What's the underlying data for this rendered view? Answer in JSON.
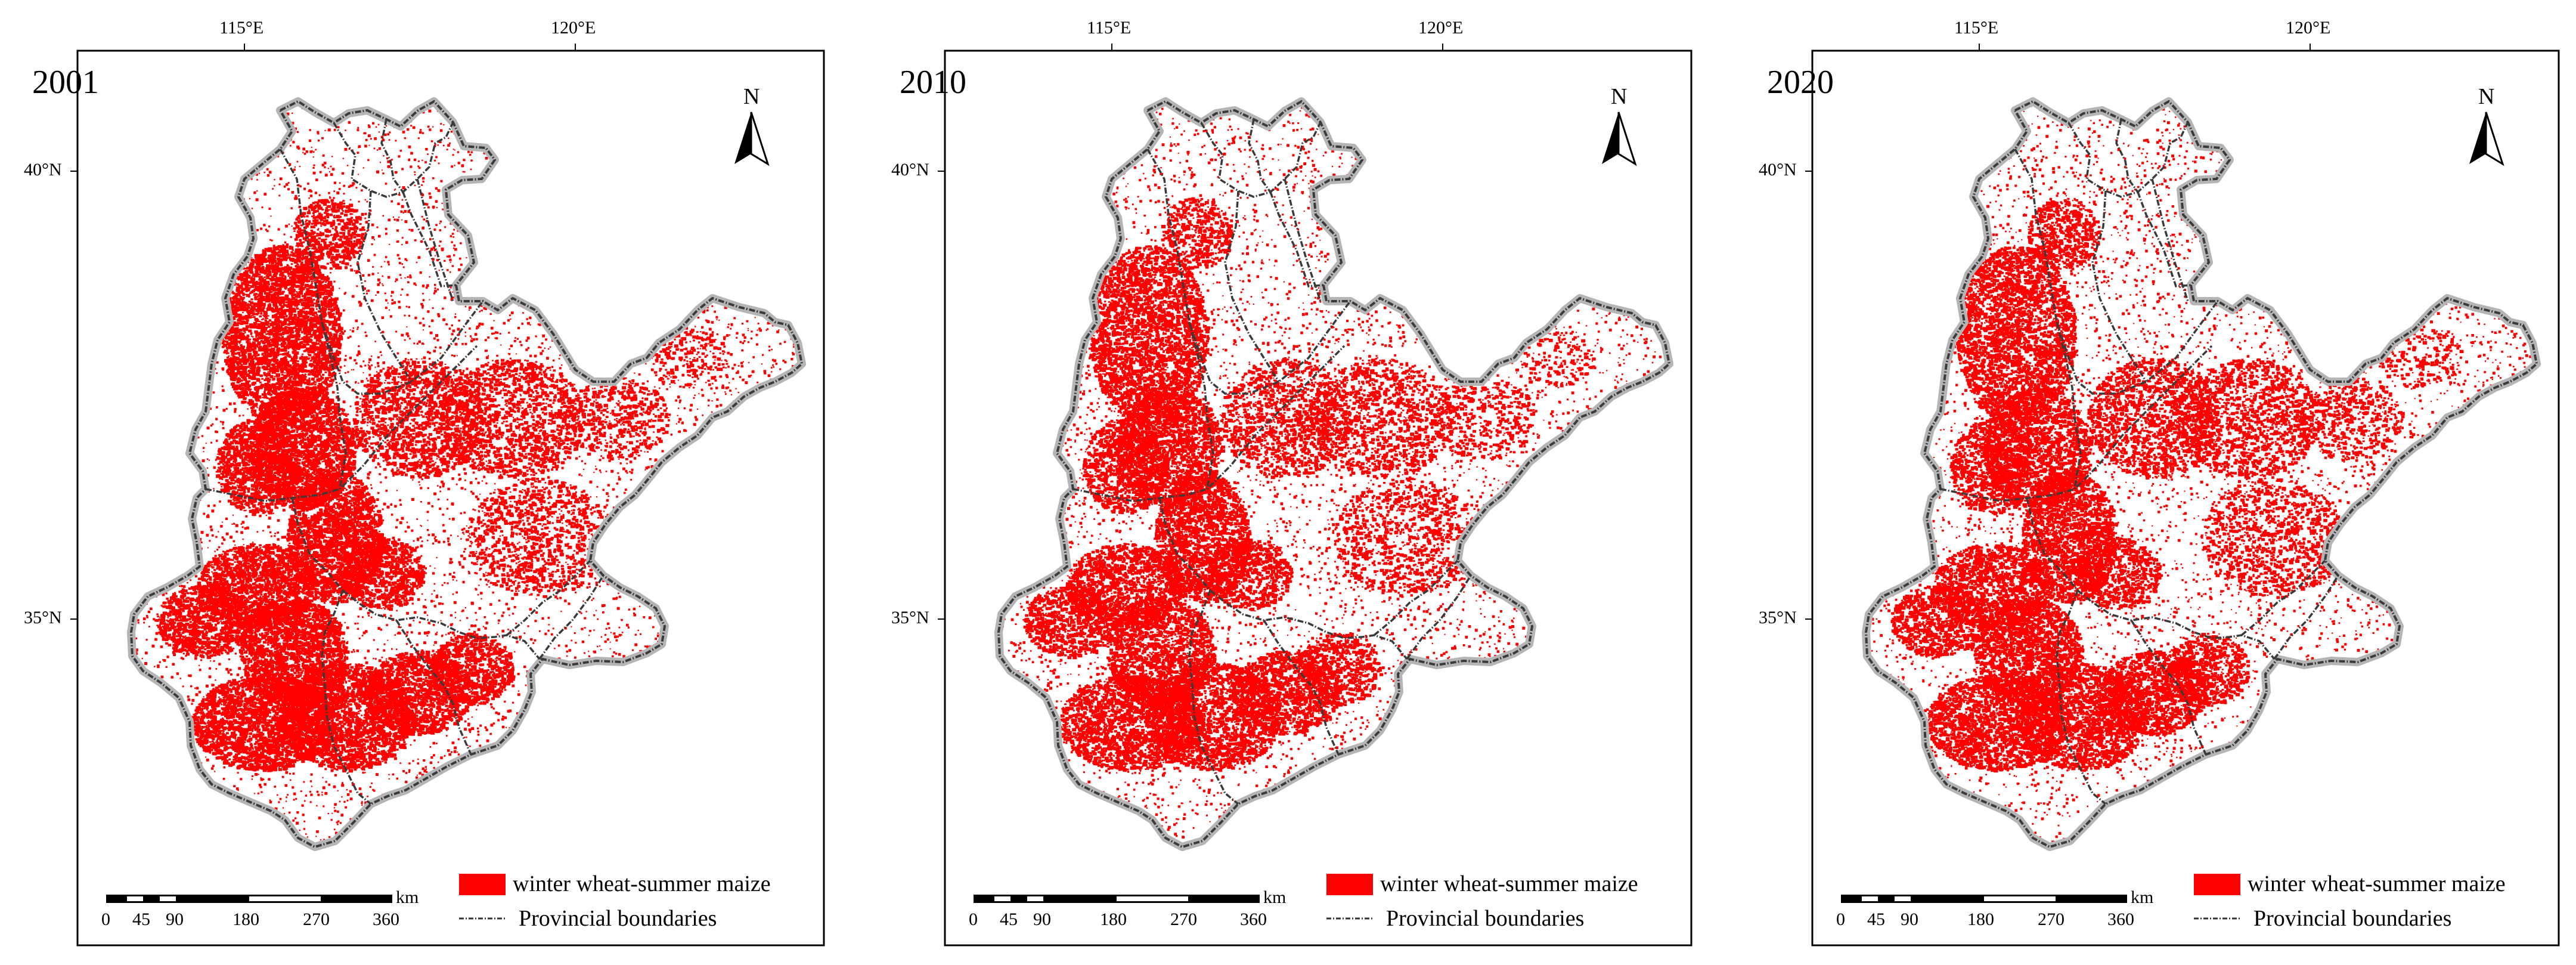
{
  "panels": [
    {
      "year": "2001",
      "density": "high"
    },
    {
      "year": "2010",
      "density": "medium"
    },
    {
      "year": "2020",
      "density": "medium"
    }
  ],
  "axes": {
    "lon_labels": [
      "115°E",
      "120°E"
    ],
    "lat_labels": [
      "40°N",
      "35°N"
    ]
  },
  "north_label": "N",
  "scale_bar": {
    "unit": "km",
    "ticks": [
      "0",
      "45",
      "90",
      "180",
      "270",
      "360"
    ]
  },
  "legend": {
    "crop_label": "winter wheat-summer maize",
    "boundary_label": "Provincial boundaries"
  },
  "colors": {
    "crop": "#ff0000",
    "boundary": "#3a3a3a",
    "boundary_halo": "#b5b5b5",
    "frame": "#000000"
  }
}
